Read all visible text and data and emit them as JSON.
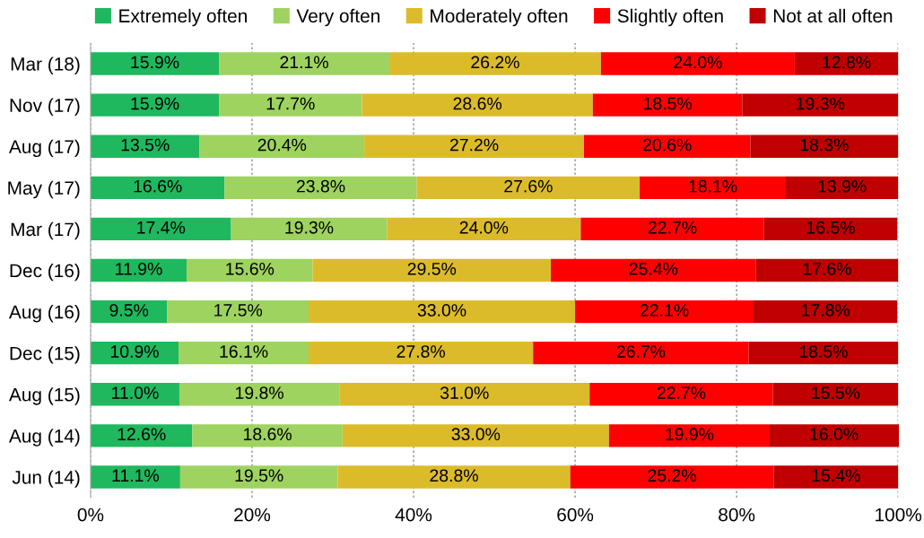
{
  "chart_data": {
    "type": "bar",
    "orientation": "horizontal",
    "stacked": true,
    "categories": [
      "Mar (18)",
      "Nov (17)",
      "Aug (17)",
      "May (17)",
      "Mar (17)",
      "Dec (16)",
      "Aug (16)",
      "Dec (15)",
      "Aug (15)",
      "Aug (14)",
      "Jun (14)"
    ],
    "series": [
      {
        "name": "Extremely often",
        "color": "#1fb85e",
        "values": [
          15.9,
          15.9,
          13.5,
          16.6,
          17.4,
          11.9,
          9.5,
          10.9,
          11.0,
          12.6,
          11.1
        ],
        "value_labels": [
          "15.9%",
          "15.9%",
          "13.5%",
          "16.6%",
          "17.4%",
          "11.9%",
          "9.5%",
          "10.9%",
          "11.0%",
          "12.6%",
          "11.1%"
        ]
      },
      {
        "name": "Very often",
        "color": "#9ed35f",
        "values": [
          21.1,
          17.7,
          20.4,
          23.8,
          19.3,
          15.6,
          17.5,
          16.1,
          19.8,
          18.6,
          19.5
        ],
        "value_labels": [
          "21.1%",
          "17.7%",
          "20.4%",
          "23.8%",
          "19.3%",
          "15.6%",
          "17.5%",
          "16.1%",
          "19.8%",
          "18.6%",
          "19.5%"
        ]
      },
      {
        "name": "Moderately often",
        "color": "#dcbb2b",
        "values": [
          26.2,
          28.6,
          27.2,
          27.6,
          24.0,
          29.5,
          33.0,
          27.8,
          31.0,
          33.0,
          28.8
        ],
        "value_labels": [
          "26.2%",
          "28.6%",
          "27.2%",
          "27.6%",
          "24.0%",
          "29.5%",
          "33.0%",
          "27.8%",
          "31.0%",
          "33.0%",
          "28.8%"
        ]
      },
      {
        "name": "Slightly often",
        "color": "#ff0000",
        "values": [
          24.0,
          18.5,
          20.6,
          18.1,
          22.7,
          25.4,
          22.1,
          26.7,
          22.7,
          19.9,
          25.2
        ],
        "value_labels": [
          "24.0%",
          "18.5%",
          "20.6%",
          "18.1%",
          "22.7%",
          "25.4%",
          "22.1%",
          "26.7%",
          "22.7%",
          "19.9%",
          "25.2%"
        ]
      },
      {
        "name": "Not at all often",
        "color": "#c00000",
        "values": [
          12.8,
          19.3,
          18.3,
          13.9,
          16.5,
          17.6,
          17.8,
          18.5,
          15.5,
          16.0,
          15.4
        ],
        "value_labels": [
          "12.8%",
          "19.3%",
          "18.3%",
          "13.9%",
          "16.5%",
          "17.6%",
          "17.8%",
          "18.5%",
          "15.5%",
          "16.0%",
          "15.4%"
        ]
      }
    ],
    "xlim": [
      0,
      100
    ],
    "xticks": [
      {
        "value": 0,
        "label": "0%"
      },
      {
        "value": 20,
        "label": "20%"
      },
      {
        "value": 40,
        "label": "40%"
      },
      {
        "value": 60,
        "label": "60%"
      },
      {
        "value": 80,
        "label": "80%"
      },
      {
        "value": 100,
        "label": "100%"
      }
    ],
    "grid": "x",
    "legend": "top"
  }
}
